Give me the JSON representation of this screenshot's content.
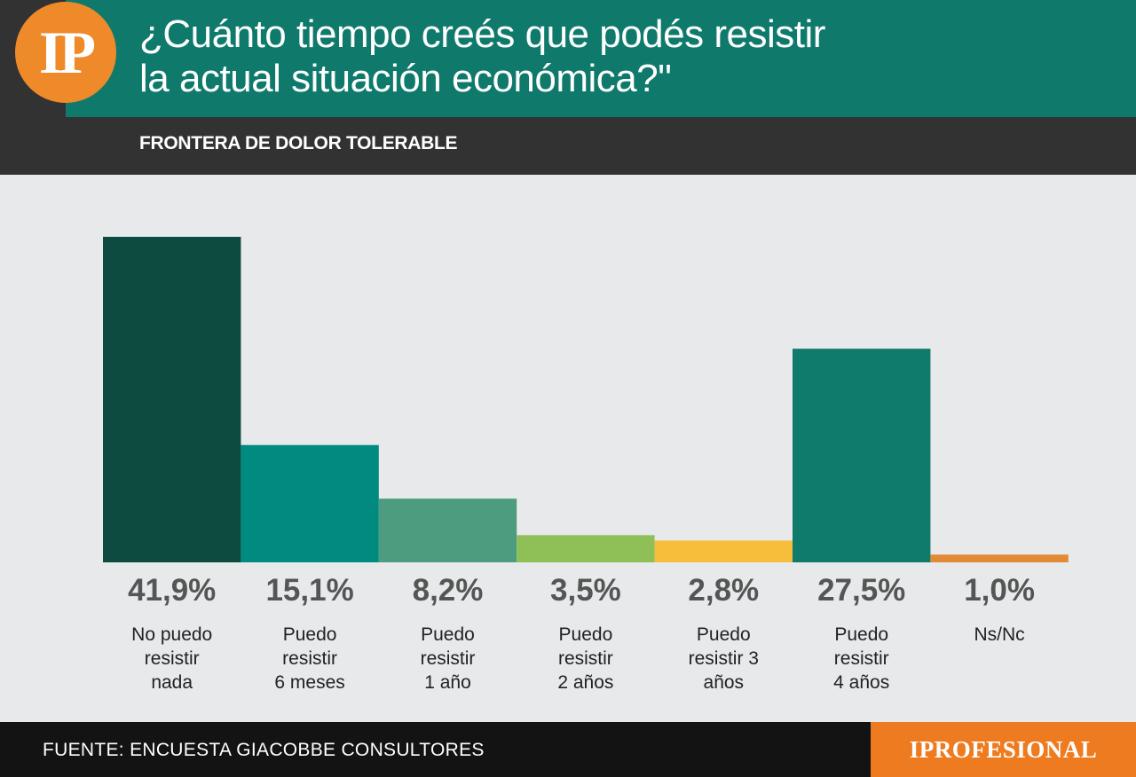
{
  "header": {
    "logo_text": "IP",
    "title_line1": "¿Cuánto tiempo creés que podés resistir",
    "title_line2": "la actual situación económica?\"",
    "subtitle": "FRONTERA DE DOLOR TOLERABLE"
  },
  "chart_data": {
    "type": "bar",
    "title": "¿Cuánto tiempo creés que podés resistir la actual situación económica?\"",
    "subtitle": "FRONTERA DE DOLOR TOLERABLE",
    "categories": [
      [
        "No puedo",
        "resistir",
        "nada"
      ],
      [
        "Puedo",
        "resistir",
        "6 meses"
      ],
      [
        "Puedo",
        "resistir",
        "1 año"
      ],
      [
        "Puedo",
        "resistir",
        "2 años"
      ],
      [
        "Puedo",
        "resistir 3",
        "años"
      ],
      [
        "Puedo",
        "resistir",
        "4 años"
      ],
      [
        "Ns/Nc"
      ]
    ],
    "values": [
      41.9,
      15.1,
      8.2,
      3.5,
      2.8,
      27.5,
      1.0
    ],
    "value_labels": [
      "41,9%",
      "15,1%",
      "8,2%",
      "3,5%",
      "2,8%",
      "27,5%",
      "1,0%"
    ],
    "colors": [
      "#0d4a40",
      "#008a80",
      "#4d9c80",
      "#8fc057",
      "#f6be3a",
      "#0e7b6c",
      "#e38a36"
    ],
    "ylim": [
      0,
      41.9
    ],
    "grid": false,
    "legend": "none",
    "xlabel": "",
    "ylabel": ""
  },
  "footer": {
    "source": "FUENTE: ENCUESTA GIACOBBE CONSULTORES",
    "brand": "IPROFESIONAL"
  }
}
